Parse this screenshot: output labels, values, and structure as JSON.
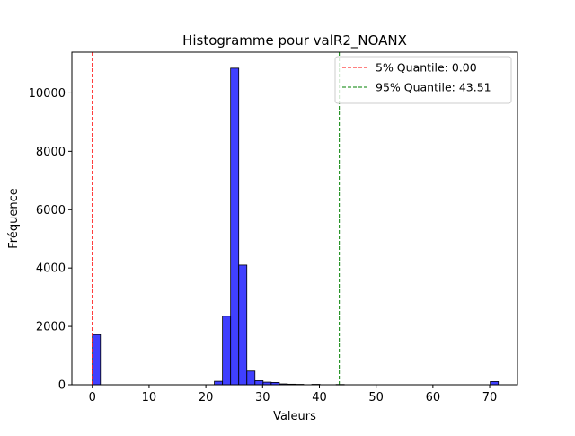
{
  "chart_data": {
    "type": "bar",
    "title": "Histogramme pour valR2_NOANX",
    "xlabel": "Valeurs",
    "ylabel": "Fréquence",
    "xlim": [
      -3.6,
      74.9
    ],
    "ylim": [
      0,
      11400
    ],
    "xticks": [
      0,
      10,
      20,
      30,
      40,
      50,
      60,
      70
    ],
    "yticks": [
      0,
      2000,
      4000,
      6000,
      8000,
      10000
    ],
    "grid": false,
    "bar_color": "#0000ff",
    "bar_edge_color": "#000000",
    "bins": [
      {
        "x0": 0.0,
        "x1": 1.43,
        "value": 1720
      },
      {
        "x0": 21.5,
        "x1": 22.93,
        "value": 120
      },
      {
        "x0": 22.93,
        "x1": 24.36,
        "value": 2350
      },
      {
        "x0": 24.36,
        "x1": 25.79,
        "value": 10850
      },
      {
        "x0": 25.79,
        "x1": 27.22,
        "value": 4100
      },
      {
        "x0": 27.22,
        "x1": 28.65,
        "value": 470
      },
      {
        "x0": 28.65,
        "x1": 30.08,
        "value": 140
      },
      {
        "x0": 30.08,
        "x1": 31.51,
        "value": 90
      },
      {
        "x0": 31.51,
        "x1": 32.94,
        "value": 80
      },
      {
        "x0": 32.94,
        "x1": 34.37,
        "value": 30
      },
      {
        "x0": 34.37,
        "x1": 35.8,
        "value": 20
      },
      {
        "x0": 35.8,
        "x1": 37.23,
        "value": 15
      },
      {
        "x0": 38.66,
        "x1": 40.09,
        "value": 15
      },
      {
        "x0": 42.95,
        "x1": 44.38,
        "value": 10
      },
      {
        "x0": 70.1,
        "x1": 71.53,
        "value": 110
      }
    ],
    "reference_lines": [
      {
        "label": "5% Quantile: 0.00",
        "x": 0.0,
        "color": "#ff0000",
        "style": "dashed"
      },
      {
        "label": "95% Quantile: 43.51",
        "x": 43.51,
        "color": "#008000",
        "style": "dashed"
      }
    ],
    "legend": {
      "position": "upper right"
    }
  }
}
